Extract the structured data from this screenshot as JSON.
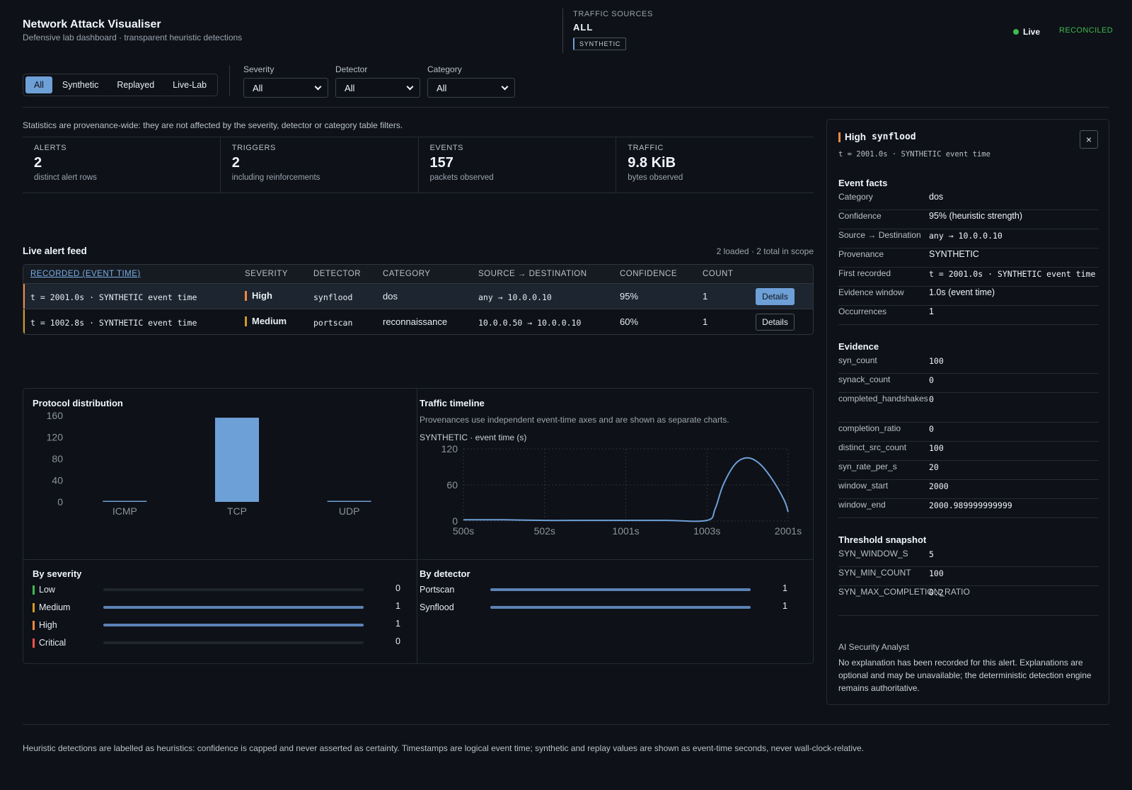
{
  "header": {
    "title": "Network Attack Visualiser",
    "subtitle": "Defensive lab dashboard · transparent heuristic detections",
    "sources_label": "TRAFFIC SOURCES",
    "sources_value": "ALL",
    "sources_badge": "SYNTHETIC",
    "live_label": "Live",
    "reconciled_label": "RECONCILED"
  },
  "filters": {
    "tabs": [
      "All",
      "Synthetic",
      "Replayed",
      "Live-Lab"
    ],
    "active_tab": "All",
    "severity": {
      "label": "Severity",
      "value": "All"
    },
    "detector": {
      "label": "Detector",
      "value": "All"
    },
    "category": {
      "label": "Category",
      "value": "All"
    }
  },
  "stats": {
    "note": "Statistics are provenance-wide: they are not affected by the severity, detector or category table filters.",
    "items": [
      {
        "label": "ALERTS",
        "value": "2",
        "sub": "distinct alert rows"
      },
      {
        "label": "TRIGGERS",
        "value": "2",
        "sub": "including reinforcements"
      },
      {
        "label": "EVENTS",
        "value": "157",
        "sub": "packets observed"
      },
      {
        "label": "TRAFFIC",
        "value": "9.8 KiB",
        "sub": "bytes observed"
      }
    ]
  },
  "feed": {
    "title": "Live alert feed",
    "count": "2 loaded · 2 total in scope",
    "columns": [
      "RECORDED (EVENT TIME)",
      "SEVERITY",
      "DETECTOR",
      "CATEGORY",
      "SOURCE → DESTINATION",
      "CONFIDENCE",
      "COUNT"
    ],
    "details_label": "Details",
    "rows": [
      {
        "time": "t = 2001.0s · SYNTHETIC event time",
        "severity": "High",
        "severity_color": "#f0883e",
        "detector": "synflood",
        "category": "dos",
        "route": "any → 10.0.0.10",
        "confidence": "95%",
        "count": "1"
      },
      {
        "time": "t = 1002.8s · SYNTHETIC event time",
        "severity": "Medium",
        "severity_color": "#d29922",
        "detector": "portscan",
        "category": "reconnaissance",
        "route": "10.0.0.50 → 10.0.0.10",
        "confidence": "60%",
        "count": "1"
      }
    ]
  },
  "protocol": {
    "title": "Protocol distribution"
  },
  "timeline": {
    "title": "Traffic timeline",
    "note": "Provenances use independent event-time axes and are shown as separate charts.",
    "subtitle": "SYNTHETIC · event time (s)"
  },
  "chart_data": [
    {
      "type": "bar",
      "title": "Protocol distribution",
      "categories": [
        "ICMP",
        "TCP",
        "UDP"
      ],
      "values": [
        1,
        156,
        0
      ],
      "ylim": [
        0,
        160
      ],
      "yticks": [
        0,
        40,
        80,
        120,
        160
      ],
      "grid": false,
      "color": "#6ea0d8"
    },
    {
      "type": "line",
      "title": "Traffic timeline",
      "xlabel": "SYNTHETIC · event time (s)",
      "x_ticks": [
        "500s",
        "502s",
        "1001s",
        "1003s",
        "2001s"
      ],
      "x": [
        0,
        0.5,
        1,
        1.5,
        2,
        2.5,
        3,
        3.1,
        3.2,
        3.35,
        3.5,
        3.65,
        3.8,
        3.95,
        4
      ],
      "y": [
        2,
        2,
        1,
        1,
        1,
        1,
        1,
        20,
        60,
        95,
        105,
        95,
        70,
        35,
        15
      ],
      "ylim": [
        0,
        120
      ],
      "yticks": [
        0,
        60,
        120
      ],
      "grid": true,
      "color": "#6ea0d8"
    },
    {
      "type": "bar",
      "title": "By severity",
      "orientation": "horizontal",
      "categories": [
        "Low",
        "Medium",
        "High",
        "Critical"
      ],
      "values": [
        0,
        1,
        1,
        0
      ],
      "colors": [
        "#3fb950",
        "#d29922",
        "#f0883e",
        "#f85149"
      ]
    },
    {
      "type": "bar",
      "title": "By detector",
      "orientation": "horizontal",
      "categories": [
        "Portscan",
        "Synflood"
      ],
      "values": [
        1,
        1
      ]
    }
  ],
  "severity_panel": {
    "title": "By severity"
  },
  "detector_panel": {
    "title": "By detector"
  },
  "detail": {
    "severity": "High",
    "detector": "synflood",
    "time": "t = 2001.0s · SYNTHETIC event time",
    "close": "×",
    "facts_title": "Event facts",
    "facts": [
      {
        "k": "Category",
        "v": "dos",
        "mono": false
      },
      {
        "k": "Confidence",
        "v": "95% (heuristic strength)",
        "mono": false
      },
      {
        "k": "Source → Destination",
        "v": "any → 10.0.0.10",
        "mono": true
      },
      {
        "k": "Provenance",
        "v": "SYNTHETIC",
        "mono": false
      },
      {
        "k": "First recorded",
        "v": "t = 2001.0s · SYNTHETIC event time",
        "mono": true
      },
      {
        "k": "Evidence window",
        "v": "1.0s (event time)",
        "mono": false
      },
      {
        "k": "Occurrences",
        "v": "1",
        "mono": false
      }
    ],
    "evidence_title": "Evidence",
    "evidence": [
      {
        "k": "syn_count",
        "v": "100"
      },
      {
        "k": "synack_count",
        "v": "0"
      },
      {
        "k": "completed_handshakes",
        "v": "0"
      },
      {
        "k": "completion_ratio",
        "v": "0"
      },
      {
        "k": "distinct_src_count",
        "v": "100"
      },
      {
        "k": "syn_rate_per_s",
        "v": "20"
      },
      {
        "k": "window_start",
        "v": "2000"
      },
      {
        "k": "window_end",
        "v": "2000.989999999999"
      }
    ],
    "threshold_title": "Threshold snapshot",
    "thresholds": [
      {
        "k": "SYN_WINDOW_S",
        "v": "5"
      },
      {
        "k": "SYN_MIN_COUNT",
        "v": "100"
      },
      {
        "k": "SYN_MAX_COMPLETION_RATIO",
        "v": "0.2"
      }
    ],
    "ai_title": "AI Security Analyst",
    "ai_text": "No explanation has been recorded for this alert. Explanations are optional and may be unavailable; the deterministic detection engine remains authoritative."
  },
  "footer": {
    "text": "Heuristic detections are labelled as heuristics: confidence is capped and never asserted as certainty. Timestamps are logical event time; synthetic and replay values are shown as event-time seconds, never wall-clock-relative."
  }
}
